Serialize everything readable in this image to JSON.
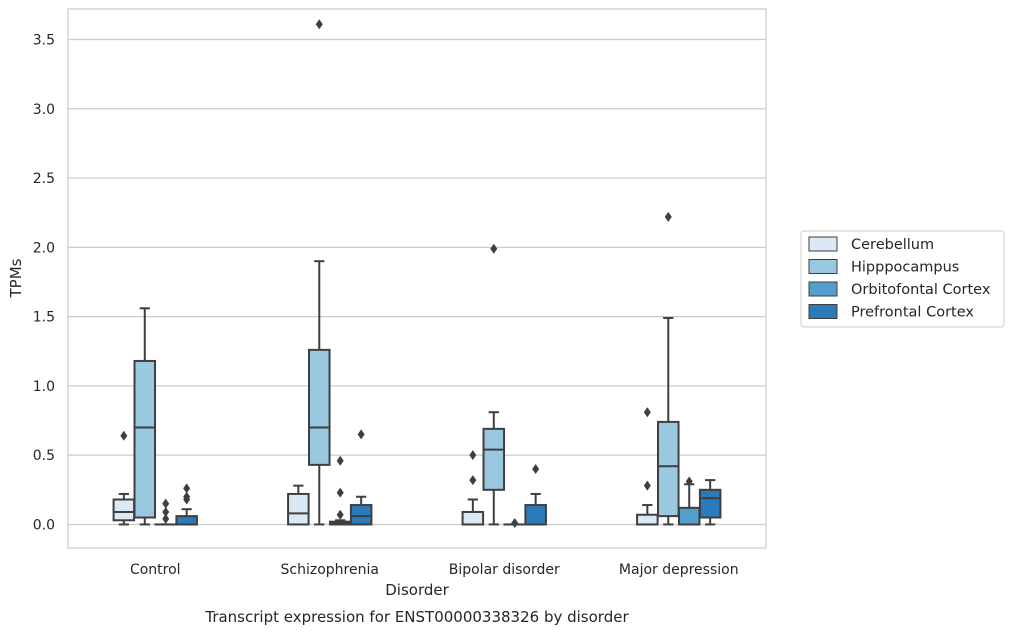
{
  "chart_data": {
    "type": "box",
    "title": "",
    "caption": "Transcript expression for ENST00000338326 by disorder",
    "xlabel": "Disorder",
    "ylabel": "TPMs",
    "ylim": [
      -0.17,
      3.72
    ],
    "yticks": [
      0.0,
      0.5,
      1.0,
      1.5,
      2.0,
      2.5,
      3.0,
      3.5
    ],
    "ytick_labels": [
      "0.0",
      "0.5",
      "1.0",
      "1.5",
      "2.0",
      "2.5",
      "3.0",
      "3.5"
    ],
    "grid": "horizontal",
    "legend_position": "right",
    "categories": [
      "Control",
      "Schizophrenia",
      "Bipolar disorder",
      "Major depression"
    ],
    "series": [
      {
        "name": "Cerebellum",
        "color": "#dbe9f6",
        "boxes": [
          {
            "category": "Control",
            "whisker_low": 0.0,
            "q1": 0.03,
            "median": 0.09,
            "q3": 0.18,
            "whisker_high": 0.22,
            "outliers": [
              0.64
            ]
          },
          {
            "category": "Schizophrenia",
            "whisker_low": 0.0,
            "q1": 0.0,
            "median": 0.08,
            "q3": 0.22,
            "whisker_high": 0.28,
            "outliers": []
          },
          {
            "category": "Bipolar disorder",
            "whisker_low": 0.0,
            "q1": 0.0,
            "median": 0.0,
            "q3": 0.09,
            "whisker_high": 0.18,
            "outliers": [
              0.32,
              0.5
            ]
          },
          {
            "category": "Major depression",
            "whisker_low": 0.0,
            "q1": 0.0,
            "median": 0.0,
            "q3": 0.07,
            "whisker_high": 0.14,
            "outliers": [
              0.28,
              0.81
            ]
          }
        ]
      },
      {
        "name": "Hipppocampus",
        "color": "#9ac8e0",
        "boxes": [
          {
            "category": "Control",
            "whisker_low": 0.0,
            "q1": 0.05,
            "median": 0.7,
            "q3": 1.18,
            "whisker_high": 1.56,
            "outliers": []
          },
          {
            "category": "Schizophrenia",
            "whisker_low": 0.0,
            "q1": 0.43,
            "median": 0.7,
            "q3": 1.26,
            "whisker_high": 1.9,
            "outliers": [
              3.61
            ]
          },
          {
            "category": "Bipolar disorder",
            "whisker_low": 0.0,
            "q1": 0.25,
            "median": 0.54,
            "q3": 0.69,
            "whisker_high": 0.81,
            "outliers": [
              1.99
            ]
          },
          {
            "category": "Major depression",
            "whisker_low": 0.0,
            "q1": 0.06,
            "median": 0.42,
            "q3": 0.74,
            "whisker_high": 1.49,
            "outliers": [
              2.22
            ]
          }
        ]
      },
      {
        "name": "Orbitofontal Cortex",
        "color": "#539ecd",
        "boxes": [
          {
            "category": "Control",
            "whisker_low": 0.0,
            "q1": 0.0,
            "median": 0.0,
            "q3": 0.0,
            "whisker_high": 0.0,
            "outliers": [
              0.04,
              0.09,
              0.15
            ]
          },
          {
            "category": "Schizophrenia",
            "whisker_low": 0.0,
            "q1": 0.0,
            "median": 0.01,
            "q3": 0.02,
            "whisker_high": 0.03,
            "outliers": [
              0.07,
              0.23,
              0.46
            ]
          },
          {
            "category": "Bipolar disorder",
            "whisker_low": 0.0,
            "q1": 0.0,
            "median": 0.0,
            "q3": 0.0,
            "whisker_high": 0.0,
            "outliers": [
              0.01
            ]
          },
          {
            "category": "Major depression",
            "whisker_low": 0.0,
            "q1": 0.0,
            "median": 0.0,
            "q3": 0.12,
            "whisker_high": 0.29,
            "outliers": [
              0.31
            ]
          }
        ]
      },
      {
        "name": "Prefrontal Cortex",
        "color": "#2b7bba",
        "boxes": [
          {
            "category": "Control",
            "whisker_low": 0.0,
            "q1": 0.0,
            "median": 0.0,
            "q3": 0.06,
            "whisker_high": 0.11,
            "outliers": [
              0.18,
              0.2,
              0.26
            ]
          },
          {
            "category": "Schizophrenia",
            "whisker_low": 0.0,
            "q1": 0.0,
            "median": 0.06,
            "q3": 0.14,
            "whisker_high": 0.2,
            "outliers": [
              0.65
            ]
          },
          {
            "category": "Bipolar disorder",
            "whisker_low": 0.0,
            "q1": 0.0,
            "median": 0.0,
            "q3": 0.14,
            "whisker_high": 0.22,
            "outliers": [
              0.4
            ]
          },
          {
            "category": "Major depression",
            "whisker_low": 0.0,
            "q1": 0.05,
            "median": 0.19,
            "q3": 0.25,
            "whisker_high": 0.32,
            "outliers": []
          }
        ]
      }
    ]
  }
}
